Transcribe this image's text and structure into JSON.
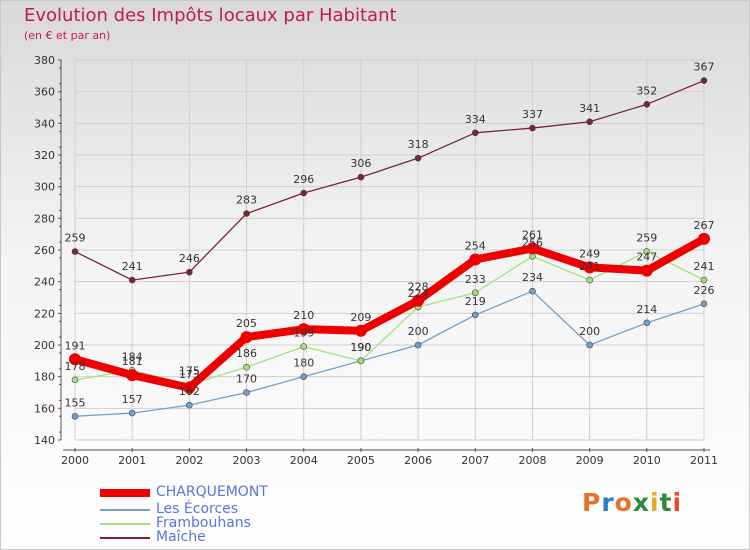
{
  "title": "Evolution des Impôts locaux par Habitant",
  "subtitle": "(en € et par an)",
  "logo": "Proxiti",
  "chart_data": {
    "type": "line",
    "title": "Evolution des Impôts locaux par Habitant",
    "subtitle": "(en € et par an)",
    "xlabel": "",
    "ylabel": "",
    "x": [
      "2000",
      "2001",
      "2002",
      "2003",
      "2004",
      "2005",
      "2006",
      "2007",
      "2008",
      "2009",
      "2010",
      "2011"
    ],
    "ylim": [
      140,
      380
    ],
    "yticks": [
      140,
      160,
      180,
      200,
      220,
      240,
      260,
      280,
      300,
      320,
      340,
      360,
      380
    ],
    "grid": true,
    "legend_position": "bottom-left",
    "series": [
      {
        "name": "Maîche",
        "color": "#7a2530",
        "values": [
          259,
          241,
          246,
          283,
          296,
          306,
          318,
          334,
          337,
          341,
          352,
          367
        ]
      },
      {
        "name": "Les Écorces",
        "color": "#6fa0d0",
        "values": [
          155,
          157,
          162,
          170,
          180,
          190,
          200,
          219,
          234,
          200,
          214,
          226
        ]
      },
      {
        "name": "Frambouhans",
        "color": "#9ee37a",
        "values": [
          178,
          184,
          175,
          186,
          199,
          190,
          224,
          233,
          256,
          241,
          259,
          241
        ]
      },
      {
        "name": "CHARQUEMONT",
        "color": "#ee0000",
        "values": [
          191,
          181,
          173,
          205,
          210,
          209,
          228,
          254,
          261,
          249,
          247,
          267
        ]
      }
    ],
    "legend": [
      "CHARQUEMONT",
      "Les Écorces",
      "Frambouhans",
      "Maîche"
    ]
  },
  "style": {
    "title_color": "#c2185b",
    "legend_text_color": "#5577dd",
    "axis_color": "#555555",
    "grid_color": "#cfcfcf"
  },
  "logo_colors": [
    "#e8712a",
    "#2a7fd4",
    "#e8712a",
    "#2e8b3d",
    "#e0b020",
    "#2e8b3d",
    "#e84a2a"
  ]
}
